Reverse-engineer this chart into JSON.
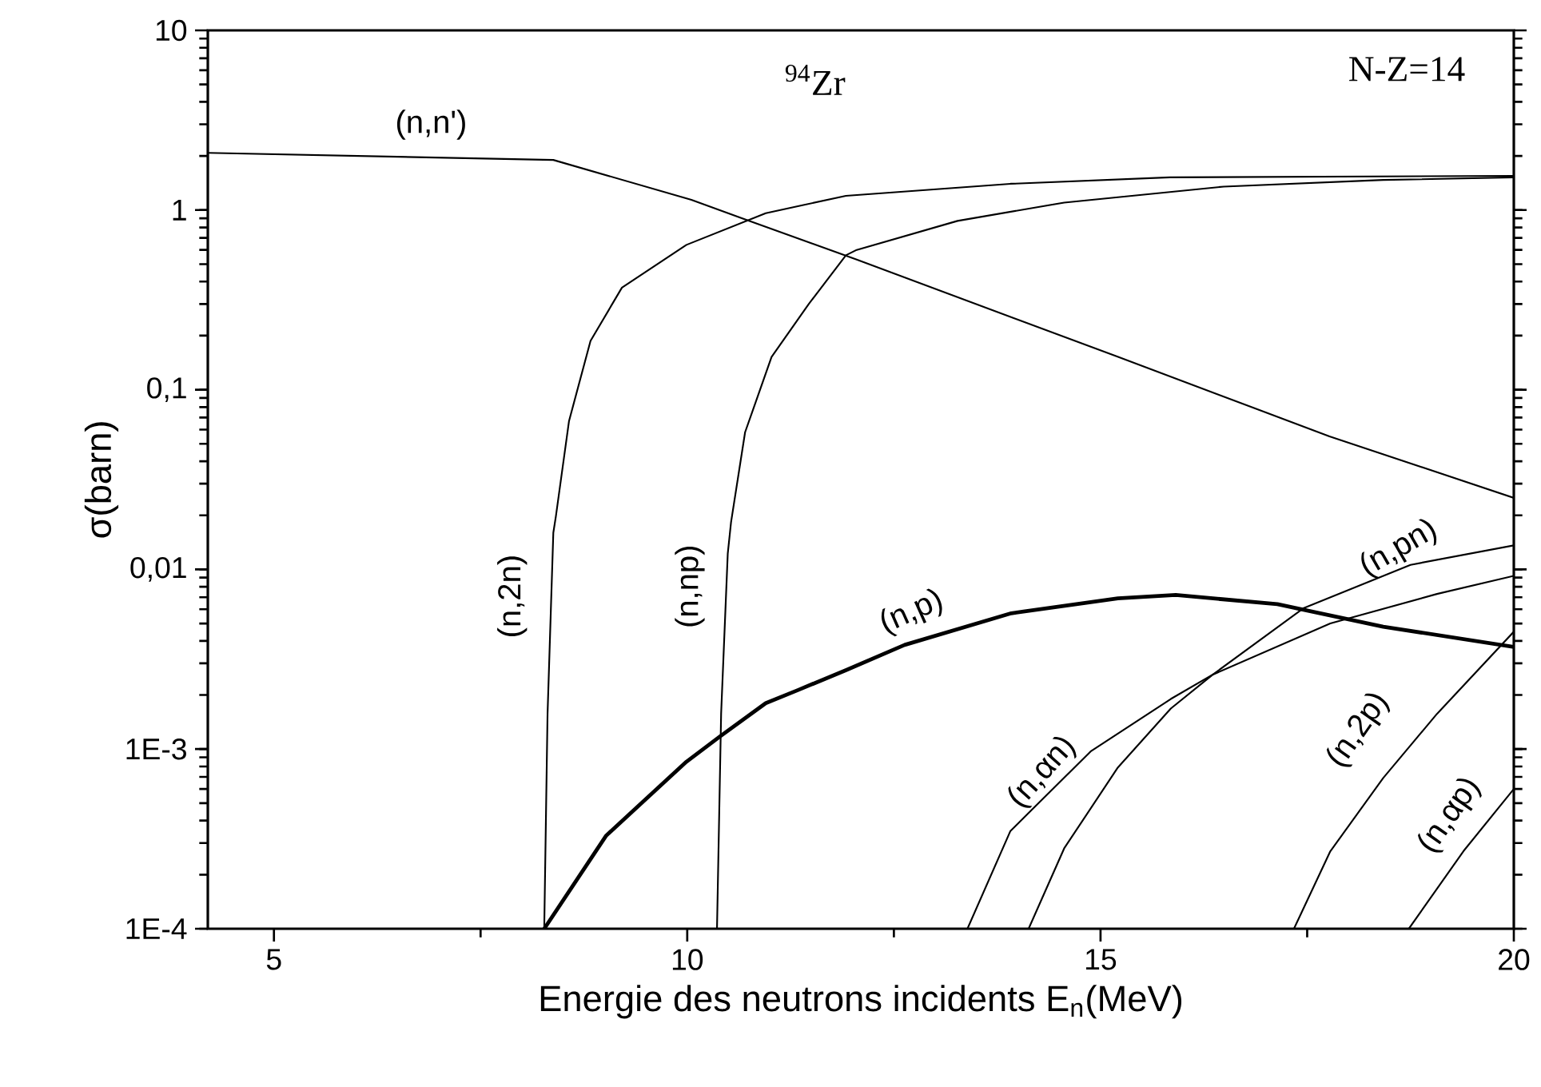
{
  "chart_data": {
    "type": "line",
    "xlabel": "Energie des neutrons incidents E$_{n}$(MeV)",
    "ylabel": "σ(barn)",
    "annotations": [
      "$^{94}$Zr",
      "N-Z=14"
    ],
    "log": "y",
    "xlim": [
      4.2,
      20
    ],
    "ylim": [
      0.0001,
      10
    ],
    "xticks": [
      5,
      10,
      15,
      20
    ],
    "yticks": [
      {
        "value": 0.0001,
        "label": "1E-4"
      },
      {
        "value": 0.001,
        "label": "1E-3"
      },
      {
        "value": 0.01,
        "label": "0,01"
      },
      {
        "value": 0.1,
        "label": "0,1"
      },
      1,
      10
    ],
    "series": [
      {
        "name": "(n,n')",
        "color": "#000000",
        "x": [
          4.2,
          8.38,
          10.05,
          10.66,
          12.05,
          15.2,
          17.77,
          20
        ],
        "values": [
          2.08,
          1.9,
          1.14,
          0.9,
          0.53,
          0.153,
          0.055,
          0.025
        ]
      },
      {
        "name": "(n,2n)",
        "color": "#000000",
        "x": [
          8.27,
          8.31,
          8.38,
          8.41,
          8.57,
          8.83,
          9.21,
          9.99,
          10.95,
          11.92,
          13.91,
          15.84,
          20
        ],
        "values": [
          0.0001,
          0.00157,
          0.016,
          0.0196,
          0.067,
          0.187,
          0.37,
          0.64,
          0.96,
          1.2,
          1.4,
          1.52,
          1.55
        ]
      },
      {
        "name": "(n,np)",
        "color": "#000000",
        "x": [
          10.36,
          10.41,
          10.49,
          10.53,
          10.7,
          11.02,
          11.47,
          11.92,
          12.05,
          13.27,
          14.56,
          16.49,
          18.42,
          20
        ],
        "values": [
          0.0001,
          0.00157,
          0.0122,
          0.0183,
          0.058,
          0.152,
          0.3,
          0.56,
          0.6,
          0.87,
          1.1,
          1.35,
          1.47,
          1.52
        ]
      },
      {
        "name": "(n,p)",
        "color": "#000000",
        "x": [
          8.27,
          9.02,
          9.99,
          10.39,
          10.95,
          11.34,
          11.92,
          12.63,
          13.92,
          15.21,
          15.91,
          17.14,
          18.42,
          20
        ],
        "values": [
          0.0001,
          0.00033,
          0.00085,
          0.00117,
          0.0018,
          0.00213,
          0.00275,
          0.0038,
          0.0057,
          0.0069,
          0.0072,
          0.0064,
          0.0048,
          0.0037
        ]
      },
      {
        "name": "(n,αn)",
        "color": "#000000",
        "x": [
          13.39,
          13.91,
          14.88,
          15.85,
          16.36,
          17.78,
          19.07,
          20
        ],
        "values": [
          0.0001,
          0.00035,
          0.00097,
          0.0019,
          0.0026,
          0.005,
          0.0073,
          0.0092
        ]
      },
      {
        "name": "(n,pn)",
        "color": "#000000",
        "x": [
          14.13,
          14.56,
          15.21,
          15.85,
          16.36,
          17.46,
          18.75,
          20
        ],
        "values": [
          0.0001,
          0.00028,
          0.00079,
          0.00168,
          0.0026,
          0.0061,
          0.0106,
          0.0136
        ]
      },
      {
        "name": "(n,2p)",
        "color": "#000000",
        "x": [
          17.34,
          17.78,
          18.42,
          19.07,
          20
        ],
        "values": [
          0.0001,
          0.00027,
          0.00069,
          0.00157,
          0.0045
        ]
      },
      {
        "name": "(n,αp)",
        "color": "#000000",
        "x": [
          18.73,
          19.39,
          20
        ],
        "values": [
          0.0001,
          0.00027,
          0.0006
        ]
      }
    ]
  }
}
